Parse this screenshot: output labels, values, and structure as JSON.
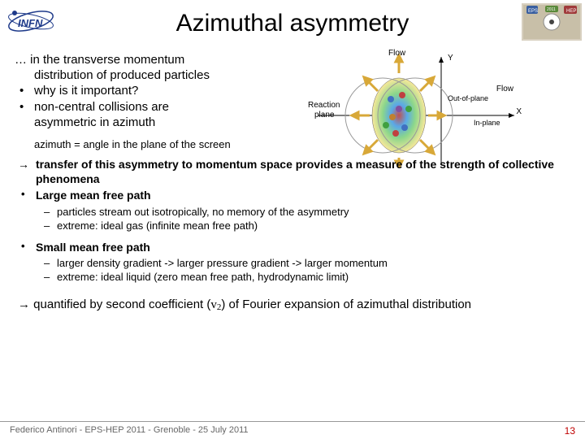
{
  "title": "Azimuthal asymmetry",
  "intro": {
    "l1": "… in the transverse momentum",
    "l2": "distribution of produced particles",
    "l3": "why is it important?",
    "l4": "non-central collisions are",
    "l5": "asymmetric in azimuth"
  },
  "note": "azimuth = angle in the plane of the screen",
  "arrow1": "transfer of this asymmetry to momentum space provides a measure of the strength of collective phenomena",
  "large": "Large mean free path",
  "large_s1": "particles stream out isotropically, no memory of the asymmetry",
  "large_s2": "extreme: ideal gas  (infinite mean free path)",
  "small": "Small mean free path",
  "small_s1": "larger density gradient -> larger pressure gradient -> larger momentum",
  "small_s2": "extreme: ideal liquid (zero mean free path, hydrodynamic limit)",
  "final_pre": "quantified by second coefficient (",
  "final_v": "v",
  "final_2": "2",
  "final_post": ") of Fourier expansion of azimuthal distribution",
  "footer": "Federico Antinori - EPS-HEP 2011 - Grenoble - 25 July 2011",
  "page": "13",
  "diagram": {
    "flow_top": "Flow",
    "flow_right": "Flow",
    "y": "Y",
    "x": "X",
    "reaction1": "Reaction",
    "reaction2": "plane",
    "oop": "Out-of-plane",
    "ip": "In-plane",
    "colors": {
      "outer_ring": "#f7e89a",
      "mid_ring": "#8bd68b",
      "inner_ring": "#5aa8e8",
      "core": "#c05050",
      "small_balls": [
        "#4070c0",
        "#c04040",
        "#40a040",
        "#c08030"
      ],
      "arrow": "#d8a838"
    }
  },
  "logos": {
    "infn_text": "INFN",
    "infn_color": "#1e3a8a",
    "eps_bg": "#d0c8b8"
  }
}
